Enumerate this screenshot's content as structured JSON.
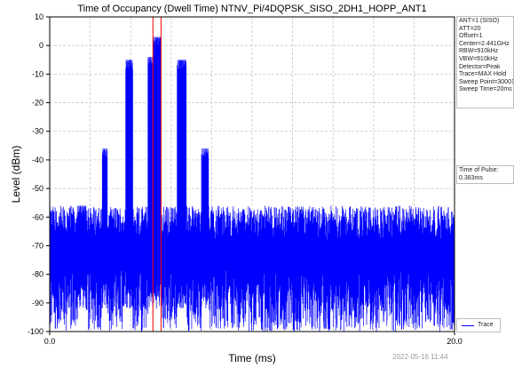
{
  "chart_data": {
    "type": "line",
    "title": "Time of Occupancy (Dwell Time) NTNV_Pi/4DQPSK_SISO_2DH1_HOPP_ANT1",
    "xlabel": "Time (ms)",
    "ylabel": "Level (dBm)",
    "xlim": [
      0.0,
      20.0
    ],
    "ylim": [
      -100,
      10
    ],
    "x_tick_labels": [
      "0.0",
      "20.0"
    ],
    "y_ticks": [
      10,
      0,
      -10,
      -20,
      -30,
      -40,
      -50,
      -60,
      -70,
      -80,
      -90,
      -100
    ],
    "grid": true,
    "grid_style": "dashed",
    "noise_floor_dbm": -72,
    "noise_floor_range_dbm": [
      -100,
      -56
    ],
    "series": [
      {
        "name": "Trace",
        "color": "#0000ff",
        "bursts": [
          {
            "start_ms": 1.4,
            "end_ms": 1.8,
            "peak_dbm": -56
          },
          {
            "start_ms": 2.6,
            "end_ms": 2.85,
            "peak_dbm": -36
          },
          {
            "start_ms": 3.75,
            "end_ms": 4.1,
            "peak_dbm": -5
          },
          {
            "start_ms": 4.85,
            "end_ms": 5.1,
            "peak_dbm": -4
          },
          {
            "start_ms": 5.1,
            "end_ms": 5.5,
            "peak_dbm": 3
          },
          {
            "start_ms": 6.3,
            "end_ms": 6.75,
            "peak_dbm": -5
          },
          {
            "start_ms": 7.5,
            "end_ms": 7.85,
            "peak_dbm": -36
          }
        ]
      }
    ],
    "markers": [
      {
        "x_ms": 5.1,
        "color": "#ff0000"
      },
      {
        "x_ms": 5.5,
        "color": "#ff0000"
      }
    ],
    "legend": {
      "entries": [
        "Trace"
      ],
      "placement": "bottom-right"
    }
  },
  "settings_box": {
    "lines": [
      "ANT=1 (SISO)",
      "ATT=20",
      "Offset=1",
      "Center=2.441GHz",
      "RBW=910kHz",
      "VBW=910kHz",
      "Detector=Peak",
      "Trace=MAX Hold",
      "Sweep Point=30001",
      "Sweep Time=20ms"
    ]
  },
  "pulse_box": {
    "lines": [
      "Time of Pulse:",
      "0.383ms"
    ]
  },
  "timestamp": "2022-05-16 11:44"
}
